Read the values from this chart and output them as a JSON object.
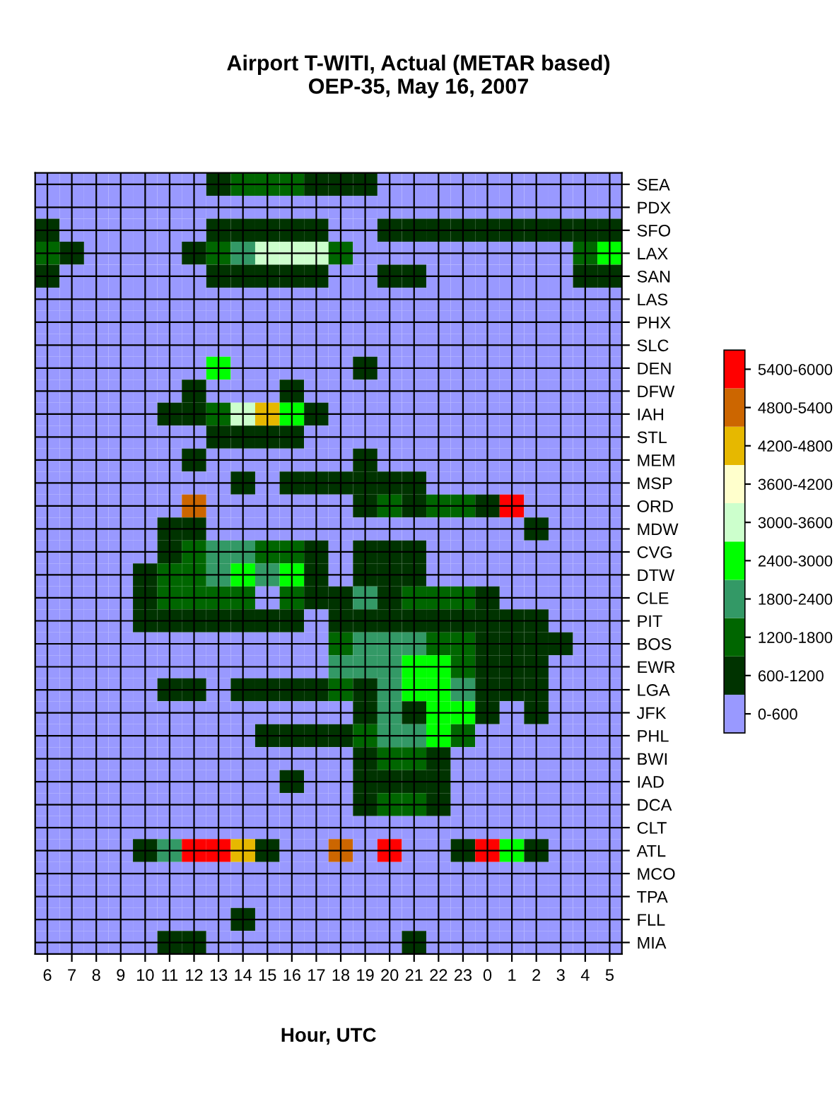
{
  "chart_data": {
    "type": "heatmap",
    "title": "Airport T-WITI, Actual (METAR based)\nOEP-35, May 16, 2007",
    "xlabel": "Hour, UTC",
    "categories": [
      "6",
      "7",
      "8",
      "9",
      "10",
      "11",
      "12",
      "13",
      "14",
      "15",
      "16",
      "17",
      "18",
      "19",
      "20",
      "21",
      "22",
      "23",
      "0",
      "1",
      "2",
      "3",
      "4",
      "5"
    ],
    "y_categories": [
      "SEA",
      "PDX",
      "SFO",
      "LAX",
      "SAN",
      "LAS",
      "PHX",
      "SLC",
      "DEN",
      "DFW",
      "IAH",
      "STL",
      "MEM",
      "MSP",
      "ORD",
      "MDW",
      "CVG",
      "DTW",
      "CLE",
      "PIT",
      "BOS",
      "EWR",
      "LGA",
      "JFK",
      "PHL",
      "BWI",
      "IAD",
      "DCA",
      "CLT",
      "ATL",
      "MCO",
      "TPA",
      "FLL",
      "MIA"
    ],
    "cells": [
      [
        0,
        0,
        0,
        0,
        0,
        0,
        0,
        900,
        1500,
        1500,
        1500,
        900,
        900,
        900,
        0,
        0,
        0,
        0,
        0,
        0,
        0,
        0,
        0,
        0
      ],
      [
        0,
        0,
        0,
        0,
        0,
        0,
        0,
        0,
        0,
        0,
        0,
        0,
        0,
        0,
        0,
        0,
        0,
        0,
        0,
        0,
        0,
        0,
        0,
        0
      ],
      [
        900,
        0,
        0,
        0,
        0,
        0,
        0,
        900,
        900,
        900,
        900,
        900,
        0,
        0,
        900,
        900,
        900,
        900,
        900,
        900,
        900,
        900,
        900,
        900
      ],
      [
        1500,
        700,
        0,
        0,
        0,
        0,
        700,
        1500,
        2100,
        3300,
        3300,
        3300,
        1500,
        0,
        0,
        0,
        0,
        0,
        0,
        0,
        0,
        0,
        1500,
        2700
      ],
      [
        900,
        0,
        0,
        0,
        0,
        0,
        0,
        900,
        900,
        900,
        900,
        900,
        0,
        0,
        900,
        900,
        0,
        0,
        0,
        0,
        0,
        0,
        900,
        900
      ],
      [
        0,
        0,
        0,
        0,
        0,
        0,
        0,
        0,
        0,
        0,
        0,
        0,
        0,
        0,
        0,
        0,
        0,
        0,
        0,
        0,
        0,
        0,
        0,
        0
      ],
      [
        0,
        0,
        0,
        0,
        0,
        0,
        0,
        0,
        0,
        0,
        0,
        0,
        0,
        0,
        0,
        0,
        0,
        0,
        0,
        0,
        0,
        0,
        0,
        0
      ],
      [
        0,
        0,
        0,
        0,
        0,
        0,
        0,
        0,
        0,
        0,
        0,
        0,
        0,
        0,
        0,
        0,
        0,
        0,
        0,
        0,
        0,
        0,
        0,
        0
      ],
      [
        0,
        0,
        0,
        0,
        0,
        0,
        0,
        2700,
        0,
        0,
        0,
        0,
        0,
        900,
        0,
        0,
        0,
        0,
        0,
        0,
        0,
        0,
        0,
        0
      ],
      [
        0,
        0,
        0,
        0,
        0,
        0,
        900,
        0,
        0,
        0,
        900,
        0,
        0,
        0,
        0,
        0,
        0,
        0,
        0,
        0,
        0,
        0,
        0,
        0
      ],
      [
        0,
        0,
        0,
        0,
        0,
        900,
        900,
        1500,
        3300,
        4300,
        2700,
        700,
        0,
        0,
        0,
        0,
        0,
        0,
        0,
        0,
        0,
        0,
        0,
        0
      ],
      [
        0,
        0,
        0,
        0,
        0,
        0,
        0,
        700,
        700,
        700,
        700,
        0,
        0,
        0,
        0,
        0,
        0,
        0,
        0,
        0,
        0,
        0,
        0,
        0
      ],
      [
        0,
        0,
        0,
        0,
        0,
        0,
        900,
        0,
        0,
        0,
        0,
        0,
        0,
        650,
        0,
        0,
        0,
        0,
        0,
        0,
        0,
        0,
        0,
        0
      ],
      [
        0,
        0,
        0,
        0,
        0,
        0,
        0,
        0,
        700,
        0,
        650,
        650,
        900,
        900,
        900,
        650,
        0,
        0,
        0,
        0,
        0,
        0,
        0,
        0
      ],
      [
        0,
        0,
        0,
        0,
        0,
        0,
        5100,
        0,
        0,
        0,
        0,
        0,
        0,
        700,
        1500,
        700,
        1500,
        1500,
        700,
        5500,
        0,
        0,
        0,
        0
      ],
      [
        0,
        0,
        0,
        0,
        0,
        700,
        900,
        0,
        0,
        0,
        0,
        0,
        0,
        0,
        0,
        0,
        0,
        0,
        0,
        0,
        900,
        0,
        0,
        0
      ],
      [
        0,
        0,
        0,
        0,
        0,
        900,
        1500,
        2100,
        2100,
        1500,
        1500,
        700,
        0,
        650,
        700,
        650,
        0,
        0,
        0,
        0,
        0,
        0,
        0,
        0
      ],
      [
        0,
        0,
        0,
        0,
        700,
        1500,
        1500,
        2100,
        2700,
        2100,
        2700,
        900,
        0,
        650,
        900,
        650,
        0,
        0,
        0,
        0,
        0,
        0,
        0,
        0
      ],
      [
        0,
        0,
        0,
        0,
        900,
        1500,
        1500,
        1500,
        1500,
        400,
        1500,
        900,
        900,
        2100,
        900,
        1500,
        1500,
        1500,
        650,
        0,
        0,
        0,
        0,
        0
      ],
      [
        0,
        0,
        0,
        0,
        700,
        900,
        900,
        900,
        900,
        900,
        900,
        0,
        700,
        900,
        900,
        900,
        900,
        900,
        900,
        900,
        900,
        0,
        0,
        0
      ],
      [
        0,
        0,
        0,
        0,
        0,
        0,
        0,
        0,
        0,
        0,
        0,
        0,
        1500,
        2100,
        2100,
        2100,
        1500,
        1500,
        900,
        900,
        900,
        700,
        0,
        0
      ],
      [
        0,
        0,
        0,
        0,
        0,
        0,
        0,
        0,
        0,
        0,
        0,
        0,
        2100,
        2100,
        2100,
        2700,
        2700,
        1500,
        900,
        900,
        900,
        0,
        0,
        0
      ],
      [
        0,
        0,
        0,
        0,
        0,
        900,
        900,
        0,
        700,
        900,
        900,
        900,
        1500,
        900,
        2100,
        2700,
        2700,
        2100,
        900,
        900,
        700,
        0,
        0,
        0
      ],
      [
        0,
        0,
        0,
        0,
        0,
        0,
        0,
        0,
        0,
        0,
        0,
        0,
        0,
        900,
        2100,
        900,
        2700,
        2700,
        650,
        0,
        900,
        0,
        0,
        0
      ],
      [
        0,
        0,
        0,
        0,
        0,
        0,
        0,
        0,
        0,
        700,
        900,
        900,
        900,
        1500,
        2100,
        2100,
        2700,
        1500,
        0,
        0,
        0,
        0,
        0,
        0
      ],
      [
        0,
        0,
        0,
        0,
        0,
        0,
        0,
        0,
        0,
        0,
        0,
        0,
        0,
        900,
        1500,
        1500,
        900,
        0,
        0,
        0,
        0,
        0,
        0,
        0
      ],
      [
        0,
        0,
        0,
        0,
        0,
        0,
        0,
        0,
        0,
        0,
        900,
        0,
        0,
        900,
        900,
        900,
        900,
        0,
        0,
        0,
        0,
        0,
        0,
        0
      ],
      [
        0,
        0,
        0,
        0,
        0,
        0,
        0,
        0,
        0,
        0,
        0,
        0,
        0,
        900,
        1500,
        1500,
        900,
        0,
        0,
        0,
        0,
        0,
        0,
        0
      ],
      [
        0,
        0,
        0,
        0,
        0,
        0,
        0,
        0,
        0,
        0,
        0,
        0,
        0,
        0,
        0,
        0,
        0,
        0,
        0,
        0,
        0,
        0,
        0,
        0
      ],
      [
        0,
        0,
        0,
        0,
        700,
        2100,
        5700,
        5700,
        4500,
        700,
        0,
        0,
        5100,
        0,
        5400,
        0,
        0,
        700,
        5700,
        2700,
        700,
        0,
        0,
        0
      ],
      [
        0,
        0,
        0,
        0,
        0,
        0,
        0,
        0,
        0,
        0,
        0,
        0,
        0,
        0,
        0,
        0,
        0,
        0,
        0,
        0,
        0,
        0,
        0,
        0
      ],
      [
        0,
        0,
        0,
        0,
        0,
        0,
        0,
        0,
        0,
        0,
        0,
        0,
        0,
        0,
        0,
        0,
        0,
        0,
        0,
        0,
        0,
        0,
        0,
        0
      ],
      [
        0,
        0,
        0,
        0,
        0,
        0,
        0,
        0,
        900,
        0,
        0,
        0,
        0,
        0,
        0,
        0,
        0,
        0,
        0,
        0,
        0,
        0,
        0,
        0
      ],
      [
        0,
        0,
        0,
        0,
        0,
        700,
        900,
        0,
        0,
        0,
        0,
        0,
        0,
        0,
        0,
        650,
        0,
        0,
        0,
        0,
        0,
        0,
        0,
        0
      ]
    ],
    "clim": [
      0,
      6000
    ],
    "cticks": [
      {
        "value": 5700,
        "label": "5400-6000"
      },
      {
        "value": 5100,
        "label": "4800-5400"
      },
      {
        "value": 4500,
        "label": "4200-4800"
      },
      {
        "value": 3900,
        "label": "3600-4200"
      },
      {
        "value": 3300,
        "label": "3000-3600"
      },
      {
        "value": 2700,
        "label": "2400-3000"
      },
      {
        "value": 2100,
        "label": "1800-2400"
      },
      {
        "value": 1500,
        "label": "1200-1800"
      },
      {
        "value": 900,
        "label": "600-1200"
      },
      {
        "value": 300,
        "label": "0-600"
      }
    ],
    "colors": [
      "#ff0000",
      "#cc6600",
      "#e6b800",
      "#ffffcc",
      "#ccffcc",
      "#00ff00",
      "#339966",
      "#006600",
      "#003300",
      "#9999ff"
    ],
    "grid": true
  }
}
